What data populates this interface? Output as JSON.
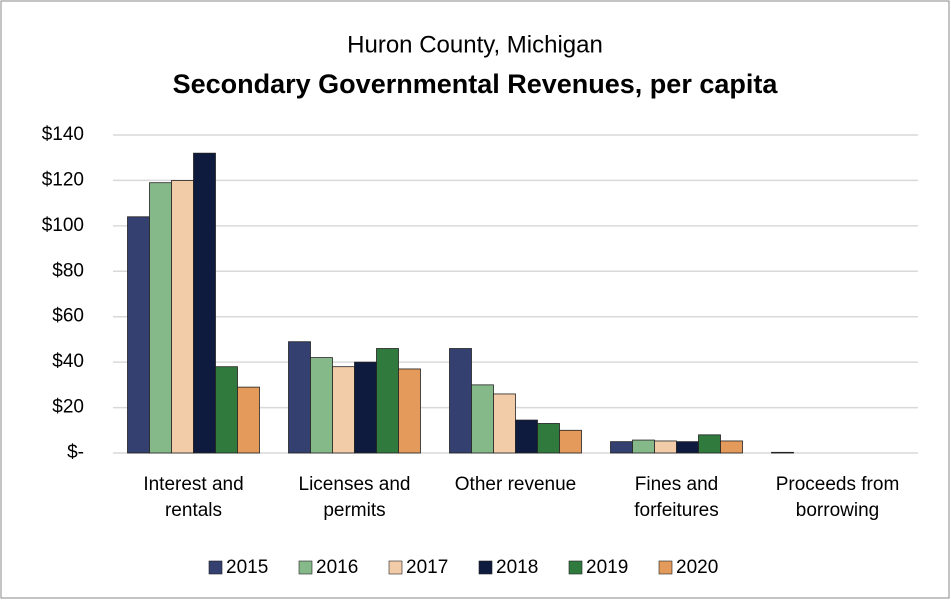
{
  "chart_data": {
    "type": "bar",
    "subtitle": "Huron County, Michigan",
    "title": "Secondary Governmental Revenues, per capita",
    "categories": [
      "Interest and rentals",
      "Licenses and permits",
      "Other revenue",
      "Fines and forfeitures",
      "Proceeds from borrowing"
    ],
    "series": [
      {
        "name": "2015",
        "color": "#334070",
        "values": [
          104,
          49,
          46,
          5,
          0.3
        ]
      },
      {
        "name": "2016",
        "color": "#86b98a",
        "values": [
          119,
          42,
          30,
          5.7,
          0
        ]
      },
      {
        "name": "2017",
        "color": "#f2cba8",
        "values": [
          120,
          38,
          26,
          5.3,
          0
        ]
      },
      {
        "name": "2018",
        "color": "#0f1a3f",
        "values": [
          132,
          40,
          14.5,
          5,
          0
        ]
      },
      {
        "name": "2019",
        "color": "#2f7a3c",
        "values": [
          38,
          46,
          13,
          8,
          0
        ]
      },
      {
        "name": "2020",
        "color": "#e39a5a",
        "values": [
          29,
          37,
          10,
          5.3,
          0
        ]
      }
    ],
    "ylim": [
      0,
      140
    ],
    "yticks": [
      {
        "value": 0,
        "label": "$-"
      },
      {
        "value": 20,
        "label": "$20"
      },
      {
        "value": 40,
        "label": "$40"
      },
      {
        "value": 60,
        "label": "$60"
      },
      {
        "value": 80,
        "label": "$80"
      },
      {
        "value": 100,
        "label": "$100"
      },
      {
        "value": 120,
        "label": "$120"
      },
      {
        "value": 140,
        "label": "$140"
      }
    ],
    "grid": true,
    "legend": "bottom"
  }
}
